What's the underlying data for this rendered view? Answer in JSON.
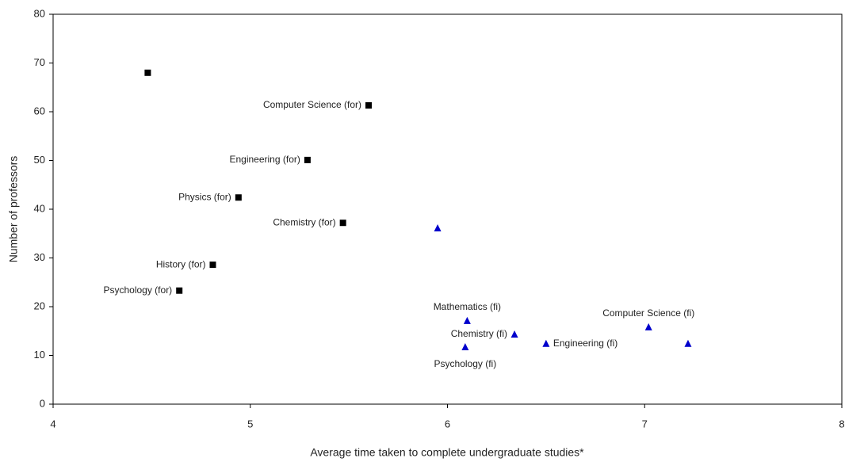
{
  "chart_data": {
    "type": "scatter",
    "xlabel": "Average time taken to complete undergraduate studies*",
    "ylabel": "Number of professors",
    "xlim": [
      4,
      8
    ],
    "xticks": [
      4,
      5,
      6,
      7,
      8
    ],
    "ylim": [
      0,
      80
    ],
    "yticks": [
      0,
      10,
      20,
      30,
      40,
      50,
      60,
      70,
      80
    ],
    "grid": false,
    "series": [
      {
        "color": "#000000",
        "marker": "square",
        "x": [
          4.48,
          5.6,
          5.29,
          4.94,
          5.47,
          4.81,
          4.64
        ],
        "values": [
          68.0,
          61.3,
          50.1,
          42.4,
          37.2,
          28.6,
          23.3
        ],
        "labels": [
          null,
          "Computer Science (for)",
          "Engineering (for)",
          "Physics (for)",
          "Chemistry (for)",
          "History (for)",
          "Psychology (for)"
        ]
      },
      {
        "color": "#0000cc",
        "marker": "triangle",
        "x": [
          5.95,
          6.1,
          6.34,
          6.09,
          6.5,
          7.02,
          7.22
        ],
        "values": [
          36.1,
          17.1,
          14.3,
          11.7,
          12.4,
          15.8,
          12.4
        ],
        "labels": [
          null,
          "Mathematics (fi)",
          "Chemistry (fi)",
          "Psychology (fi)",
          "Engineering (fi)",
          "Computer Science (fi)",
          null
        ]
      }
    ]
  }
}
